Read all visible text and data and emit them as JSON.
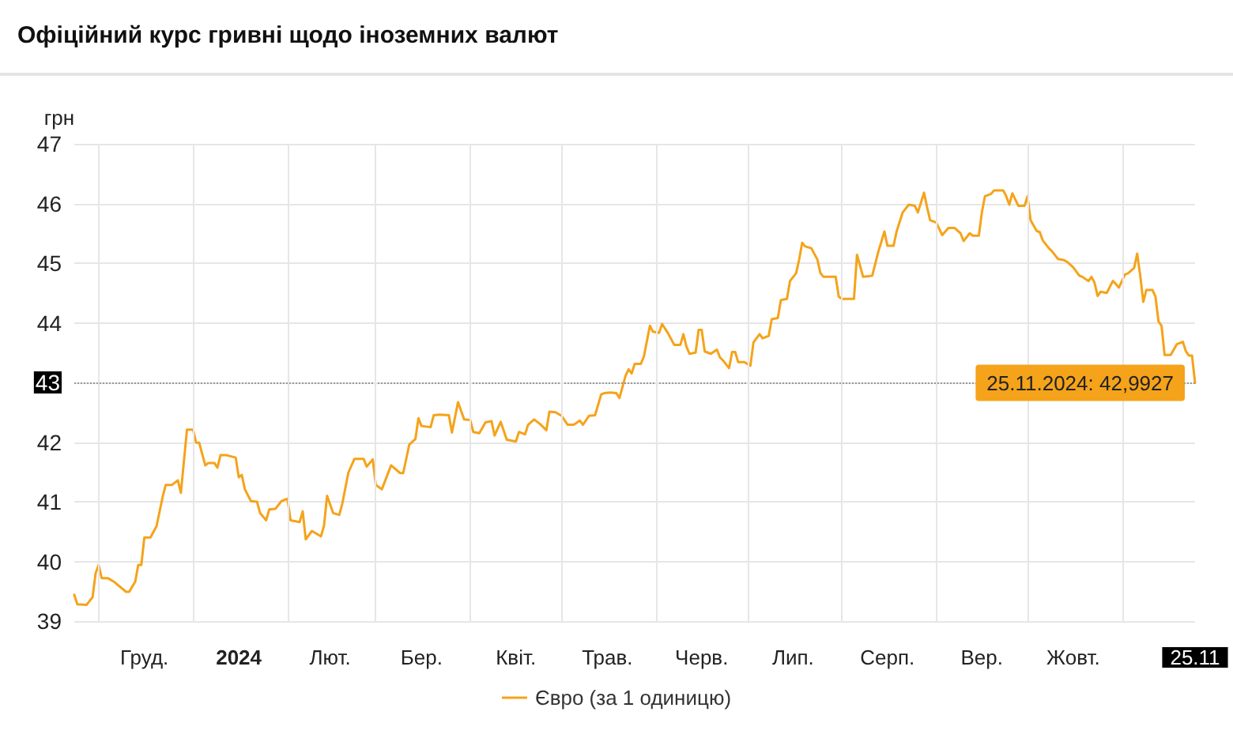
{
  "chart_data": {
    "type": "line",
    "title": "Офіційний курс гривні щодо іноземних валют",
    "ylabel": "грн",
    "xlim": [
      "2023-11-23",
      "2024-11-25"
    ],
    "xticks": [
      {
        "value": "2023-12-01",
        "label": null
      },
      {
        "value": "2023-12-16",
        "label": "Груд."
      },
      {
        "value": "2024-01-01",
        "label": null
      },
      {
        "value": "2024-01-16",
        "label": "2024"
      },
      {
        "value": "2024-02-01",
        "label": null
      },
      {
        "value": "2024-02-15",
        "label": "Лют."
      },
      {
        "value": "2024-03-01",
        "label": null
      },
      {
        "value": "2024-03-16",
        "label": "Бер."
      },
      {
        "value": "2024-04-01",
        "label": null
      },
      {
        "value": "2024-04-16",
        "label": "Квіт."
      },
      {
        "value": "2024-05-01",
        "label": null
      },
      {
        "value": "2024-05-16",
        "label": "Трав."
      },
      {
        "value": "2024-06-01",
        "label": null
      },
      {
        "value": "2024-06-16",
        "label": "Черв."
      },
      {
        "value": "2024-07-01",
        "label": null
      },
      {
        "value": "2024-07-16",
        "label": "Лип."
      },
      {
        "value": "2024-08-01",
        "label": null
      },
      {
        "value": "2024-08-16",
        "label": "Серп."
      },
      {
        "value": "2024-09-01",
        "label": null
      },
      {
        "value": "2024-09-16",
        "label": "Вер."
      },
      {
        "value": "2024-10-01",
        "label": null
      },
      {
        "value": "2024-10-16",
        "label": "Жовт."
      },
      {
        "value": "2024-11-01",
        "label": null
      },
      {
        "value": "2024-11-25",
        "label": "25.11"
      }
    ],
    "ylim": [
      39,
      47
    ],
    "yticks": [
      39,
      40,
      41,
      42,
      43,
      44,
      45,
      46,
      47
    ],
    "grid": true,
    "legend": "bottom",
    "marker": "none",
    "line_style": "solid",
    "ref_lines": [
      {
        "axis": "y",
        "value": 42.9927,
        "color": "#999999",
        "line_style": "dotted"
      }
    ],
    "annotations": [
      {
        "text": "25.11.2024: 42,9927",
        "x": "2024-11-25",
        "y": 42.9927
      }
    ],
    "series": [
      {
        "name": "Євро (за 1 одиницю)",
        "color": "#f5a31a",
        "x": [
          "2023-11-23",
          "2023-11-24",
          "2023-11-27",
          "2023-11-29",
          "2023-11-30",
          "2023-12-01",
          "2023-12-02",
          "2023-12-04",
          "2023-12-06",
          "2023-12-10",
          "2023-12-11",
          "2023-12-13",
          "2023-12-14",
          "2023-12-15",
          "2023-12-16",
          "2023-12-18",
          "2023-12-20",
          "2023-12-22",
          "2023-12-23",
          "2023-12-25",
          "2023-12-27",
          "2023-12-28",
          "2023-12-30",
          "2024-01-01",
          "2024-01-02",
          "2024-01-03",
          "2024-01-05",
          "2024-01-06",
          "2024-01-08",
          "2024-01-09",
          "2024-01-10",
          "2024-01-12",
          "2024-01-15",
          "2024-01-16",
          "2024-01-17",
          "2024-01-18",
          "2024-01-20",
          "2024-01-22",
          "2024-01-23",
          "2024-01-25",
          "2024-01-26",
          "2024-01-28",
          "2024-01-30",
          "2024-02-01",
          "2024-02-02",
          "2024-02-05",
          "2024-02-06",
          "2024-02-07",
          "2024-02-09",
          "2024-02-12",
          "2024-02-13",
          "2024-02-14",
          "2024-02-16",
          "2024-02-18",
          "2024-02-19",
          "2024-02-21",
          "2024-02-23",
          "2024-02-26",
          "2024-02-27",
          "2024-02-29",
          "2024-03-01",
          "2024-03-03",
          "2024-03-06",
          "2024-03-09",
          "2024-03-10",
          "2024-03-12",
          "2024-03-14",
          "2024-03-15",
          "2024-03-16",
          "2024-03-19",
          "2024-03-20",
          "2024-03-22",
          "2024-03-25",
          "2024-03-26",
          "2024-03-28",
          "2024-03-30",
          "2024-04-01",
          "2024-04-02",
          "2024-04-04",
          "2024-04-06",
          "2024-04-08",
          "2024-04-09",
          "2024-04-11",
          "2024-04-13",
          "2024-04-16",
          "2024-04-17",
          "2024-04-19",
          "2024-04-20",
          "2024-04-22",
          "2024-04-24",
          "2024-04-26",
          "2024-04-27",
          "2024-04-29",
          "2024-05-01",
          "2024-05-03",
          "2024-05-05",
          "2024-05-07",
          "2024-05-08",
          "2024-05-10",
          "2024-05-12",
          "2024-05-14",
          "2024-05-15",
          "2024-05-17",
          "2024-05-19",
          "2024-05-20",
          "2024-05-22",
          "2024-05-23",
          "2024-05-24",
          "2024-05-25",
          "2024-05-27",
          "2024-05-28",
          "2024-05-30",
          "2024-05-31",
          "2024-06-02",
          "2024-06-03",
          "2024-06-05",
          "2024-06-07",
          "2024-06-09",
          "2024-06-10",
          "2024-06-11",
          "2024-06-12",
          "2024-06-14",
          "2024-06-15",
          "2024-06-16",
          "2024-06-17",
          "2024-06-19",
          "2024-06-21",
          "2024-06-22",
          "2024-06-23",
          "2024-06-25",
          "2024-06-26",
          "2024-06-27",
          "2024-06-28",
          "2024-06-30",
          "2024-07-02",
          "2024-07-03",
          "2024-07-05",
          "2024-07-06",
          "2024-07-08",
          "2024-07-09",
          "2024-07-11",
          "2024-07-12",
          "2024-07-14",
          "2024-07-15",
          "2024-07-17",
          "2024-07-18",
          "2024-07-19",
          "2024-07-20",
          "2024-07-22",
          "2024-07-24",
          "2024-07-25",
          "2024-07-26",
          "2024-07-30",
          "2024-07-31",
          "2024-08-01",
          "2024-08-05",
          "2024-08-06",
          "2024-08-08",
          "2024-08-10",
          "2024-08-11",
          "2024-08-13",
          "2024-08-15",
          "2024-08-16",
          "2024-08-18",
          "2024-08-19",
          "2024-08-21",
          "2024-08-23",
          "2024-08-25",
          "2024-08-26",
          "2024-08-28",
          "2024-08-29",
          "2024-08-30",
          "2024-09-01",
          "2024-09-03",
          "2024-09-05",
          "2024-09-07",
          "2024-09-09",
          "2024-09-10",
          "2024-09-12",
          "2024-09-13",
          "2024-09-15",
          "2024-09-16",
          "2024-09-17",
          "2024-09-19",
          "2024-09-20",
          "2024-09-23",
          "2024-09-24",
          "2024-09-25",
          "2024-09-26",
          "2024-09-28",
          "2024-09-30",
          "2024-10-01",
          "2024-10-02",
          "2024-10-04",
          "2024-10-05",
          "2024-10-06",
          "2024-10-08",
          "2024-10-09",
          "2024-10-11",
          "2024-10-13",
          "2024-10-14",
          "2024-10-16",
          "2024-10-18",
          "2024-10-19",
          "2024-10-21",
          "2024-10-22",
          "2024-10-23",
          "2024-10-24",
          "2024-10-25",
          "2024-10-27",
          "2024-10-29",
          "2024-10-30",
          "2024-10-31",
          "2024-11-02",
          "2024-11-03",
          "2024-11-05",
          "2024-11-06",
          "2024-11-07",
          "2024-11-08",
          "2024-11-09",
          "2024-11-11",
          "2024-11-12",
          "2024-11-13",
          "2024-11-14",
          "2024-11-15",
          "2024-11-17",
          "2024-11-19",
          "2024-11-21",
          "2024-11-22",
          "2024-11-23",
          "2024-11-24",
          "2024-11-25"
        ],
        "values": [
          39.44,
          39.28,
          39.27,
          39.4,
          39.8,
          39.94,
          39.72,
          39.72,
          39.66,
          39.49,
          39.49,
          39.66,
          39.94,
          39.94,
          40.4,
          40.4,
          40.59,
          41.08,
          41.28,
          41.28,
          41.36,
          41.15,
          42.21,
          42.21,
          41.99,
          41.99,
          41.61,
          41.65,
          41.65,
          41.57,
          41.78,
          41.78,
          41.74,
          41.41,
          41.45,
          41.21,
          41.01,
          41.0,
          40.81,
          40.69,
          40.87,
          40.88,
          41.01,
          41.05,
          40.69,
          40.66,
          40.84,
          40.37,
          40.51,
          40.42,
          40.6,
          41.1,
          40.81,
          40.78,
          40.97,
          41.49,
          41.72,
          41.72,
          41.59,
          41.71,
          41.28,
          41.21,
          41.61,
          41.48,
          41.48,
          41.96,
          42.05,
          42.4,
          42.27,
          42.25,
          42.45,
          42.46,
          42.45,
          42.16,
          42.67,
          42.38,
          42.37,
          42.17,
          42.15,
          42.33,
          42.35,
          42.11,
          42.34,
          42.04,
          42.01,
          42.17,
          42.13,
          42.29,
          42.38,
          42.3,
          42.2,
          42.51,
          42.5,
          42.44,
          42.29,
          42.29,
          42.36,
          42.29,
          42.44,
          42.45,
          42.8,
          42.82,
          42.83,
          42.82,
          42.74,
          43.11,
          43.22,
          43.15,
          43.31,
          43.31,
          43.43,
          43.95,
          43.85,
          43.83,
          43.98,
          43.82,
          43.63,
          43.63,
          43.81,
          43.6,
          43.48,
          43.5,
          43.88,
          43.88,
          43.52,
          43.48,
          43.55,
          43.42,
          43.37,
          43.24,
          43.51,
          43.51,
          43.34,
          43.34,
          43.28,
          43.67,
          43.81,
          43.74,
          43.78,
          44.06,
          44.08,
          44.38,
          44.4,
          44.7,
          44.83,
          45.06,
          45.34,
          45.28,
          45.25,
          45.06,
          44.83,
          44.77,
          44.77,
          44.44,
          44.4,
          44.4,
          45.14,
          44.77,
          44.78,
          44.79,
          45.19,
          45.53,
          45.29,
          45.29,
          45.53,
          45.85,
          45.98,
          45.96,
          45.85,
          46.18,
          45.94,
          45.72,
          45.68,
          45.47,
          45.59,
          45.59,
          45.5,
          45.37,
          45.5,
          45.46,
          45.46,
          45.85,
          46.12,
          46.16,
          46.22,
          46.22,
          46.12,
          45.98,
          46.17,
          45.96,
          45.96,
          46.12,
          45.72,
          45.54,
          45.52,
          45.38,
          45.25,
          45.2,
          45.07,
          45.05,
          45.02,
          44.93,
          44.79,
          44.77,
          44.7,
          44.77,
          44.67,
          44.45,
          44.52,
          44.5,
          44.7,
          44.65,
          44.59,
          44.81,
          44.83,
          44.92,
          45.16,
          44.79,
          44.35,
          44.55,
          44.55,
          44.44,
          44.02,
          43.95,
          43.46,
          43.46,
          43.64,
          43.68,
          43.52,
          43.45,
          43.45,
          42.9927
        ]
      }
    ]
  }
}
